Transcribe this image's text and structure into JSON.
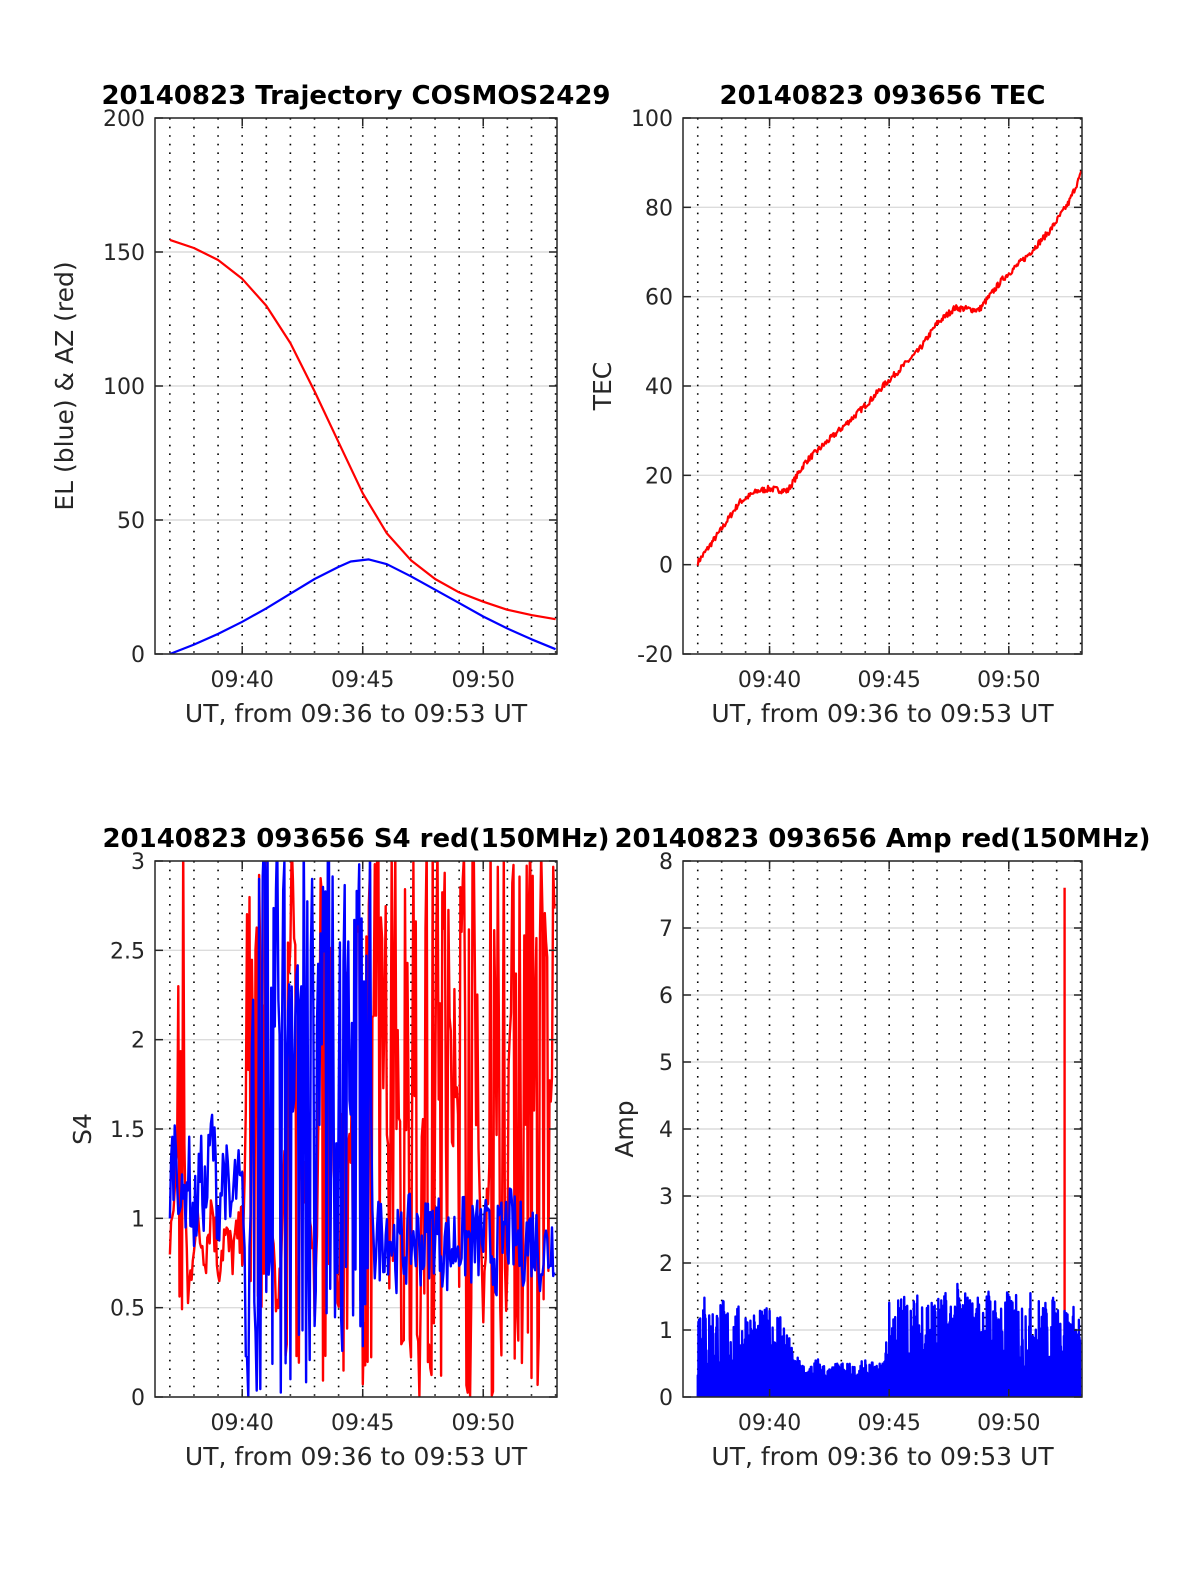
{
  "chart_data": [
    {
      "type": "line",
      "title": "20140823 Trajectory COSMOS2429",
      "xlabel": "UT, from 09:36 to 09:53 UT",
      "ylabel": "EL (blue) & AZ (red)",
      "xlim": [
        9.6064,
        9.8843
      ],
      "ylim": [
        0,
        200
      ],
      "xticks": [
        9.6667,
        9.75,
        9.8333
      ],
      "xticklabels": [
        "09:40",
        "09:45",
        "09:50"
      ],
      "yticks": [
        0,
        50,
        100,
        150,
        200
      ],
      "yticklabels": [
        "0",
        "50",
        "100",
        "150",
        "200"
      ],
      "grid": true,
      "series": [
        {
          "color": "#ff0000",
          "x": [
            9.6167,
            9.6333,
            9.65,
            9.6667,
            9.6833,
            9.7,
            9.7167,
            9.7333,
            9.75,
            9.7667,
            9.7833,
            9.8,
            9.8167,
            9.8333,
            9.85,
            9.8667,
            9.8833
          ],
          "y": [
            154.5,
            151.5,
            147,
            140,
            130,
            116,
            98,
            79,
            60,
            45,
            35,
            28,
            23,
            19.5,
            16.5,
            14.5,
            13
          ]
        },
        {
          "color": "#0000ff",
          "x": [
            9.6167,
            9.6333,
            9.65,
            9.6667,
            9.6833,
            9.7,
            9.7167,
            9.7333,
            9.7417,
            9.7542,
            9.7667,
            9.7833,
            9.8,
            9.8167,
            9.8333,
            9.85,
            9.8667,
            9.8833
          ],
          "y": [
            0,
            3.5,
            7.5,
            12,
            17,
            22.5,
            28,
            32.5,
            34.5,
            35.3,
            33.5,
            29,
            24,
            19,
            14,
            9.5,
            5.5,
            1.8
          ]
        }
      ]
    },
    {
      "type": "line",
      "title": "20140823 093656 TEC",
      "xlabel": "UT, from 09:36 to 09:53 UT",
      "ylabel": "TEC",
      "xlim": [
        9.6064,
        9.8843
      ],
      "ylim": [
        -20,
        100
      ],
      "xticks": [
        9.6667,
        9.75,
        9.8333
      ],
      "xticklabels": [
        "09:40",
        "09:45",
        "09:50"
      ],
      "yticks": [
        -20,
        0,
        20,
        40,
        60,
        80,
        100
      ],
      "yticklabels": [
        "-20",
        "0",
        "20",
        "40",
        "60",
        "80",
        "100"
      ],
      "grid": true,
      "series": [
        {
          "color": "#ff0000",
          "x": [
            9.6167,
            9.6333,
            9.6458,
            9.6583,
            9.6667,
            9.6792,
            9.6917,
            9.7083,
            9.725,
            9.7375,
            9.7458,
            9.7583,
            9.7708,
            9.7833,
            9.7958,
            9.8125,
            9.8292,
            9.8458,
            9.8625,
            9.875,
            9.8843
          ],
          "y": [
            0.5,
            8,
            14,
            16.5,
            17,
            16.5,
            23,
            28,
            33,
            37,
            40,
            44,
            48,
            54,
            57.5,
            57,
            64,
            69,
            75,
            81,
            88
          ]
        }
      ]
    },
    {
      "type": "line",
      "title": "20140823 093656 S4 red(150MHz)",
      "xlabel": "UT, from 09:36 to 09:53 UT",
      "ylabel": "S4",
      "xlim": [
        9.6064,
        9.8843
      ],
      "ylim": [
        0,
        3
      ],
      "xticks": [
        9.6667,
        9.75,
        9.8333
      ],
      "xticklabels": [
        "09:40",
        "09:45",
        "09:50"
      ],
      "yticks": [
        0,
        0.5,
        1,
        1.5,
        2,
        2.5,
        3
      ],
      "yticklabels": [
        "0",
        "0.5",
        "1",
        "1.5",
        "2",
        "2.5",
        "3"
      ],
      "grid": true,
      "series": [
        {
          "color": "#ff0000",
          "x": [
            9.6167,
            9.6208,
            9.625,
            9.6292,
            9.6333,
            9.6375,
            9.6417,
            9.6458,
            9.65,
            9.6542,
            9.6583,
            9.6625,
            9.6667,
            9.675,
            9.6833,
            9.6917,
            9.7,
            9.7083,
            9.7167,
            9.725,
            9.7333,
            9.7375,
            9.7417,
            9.7458,
            9.75,
            9.7583,
            9.7667,
            9.775,
            9.7833,
            9.7917,
            9.8,
            9.8083,
            9.8167,
            9.825,
            9.8333,
            9.8417,
            9.85,
            9.8583,
            9.8667,
            9.875,
            9.8833
          ],
          "y": [
            0.9,
            1.2,
            2.0,
            0.5,
            0.95,
            0.9,
            0.85,
            1.1,
            0.75,
            0.9,
            0.8,
            0.85,
            0.9,
            2.8,
            1.6,
            0.4,
            2.4,
            1.3,
            0.6,
            2.9,
            0.3,
            2.5,
            1.2,
            2.8,
            2.0,
            2.9,
            1.4,
            2.6,
            2.9,
            2.2,
            2.9,
            1.8,
            2.7,
            2.9,
            0.4,
            2.5,
            2.9,
            2.2,
            2.9,
            2.6,
            2.9
          ]
        },
        {
          "color": "#0000ff",
          "x": [
            9.6167,
            9.6208,
            9.625,
            9.6292,
            9.6333,
            9.6375,
            9.6417,
            9.6458,
            9.65,
            9.6542,
            9.6583,
            9.6625,
            9.6667,
            9.6708,
            9.675,
            9.6833,
            9.6917,
            9.7,
            9.7083,
            9.7167,
            9.725,
            9.7333,
            9.7375,
            9.7417,
            9.75,
            9.7583,
            9.7667,
            9.775,
            9.7833,
            9.7917,
            9.8,
            9.8083,
            9.8167,
            9.825,
            9.8333,
            9.8417,
            9.85,
            9.8583,
            9.8667,
            9.875,
            9.8833
          ],
          "y": [
            1.2,
            1.45,
            1.0,
            1.3,
            0.95,
            1.25,
            1.1,
            1.5,
            1.05,
            1.3,
            1.0,
            1.2,
            1.1,
            0.0,
            2.9,
            2.0,
            2.9,
            1.9,
            2.8,
            2.9,
            2.6,
            2.9,
            2.8,
            2.9,
            2.7,
            0.85,
            0.95,
            0.8,
            0.9,
            0.85,
            0.95,
            0.8,
            0.9,
            0.85,
            0.9,
            0.8,
            0.95,
            0.85,
            0.9,
            0.8,
            0.9
          ]
        }
      ]
    },
    {
      "type": "line",
      "title": "20140823 093656 Amp red(150MHz)",
      "xlabel": "UT, from 09:36 to 09:53 UT",
      "ylabel": "Amp",
      "xlim": [
        9.6064,
        9.8843
      ],
      "ylim": [
        0,
        8
      ],
      "xticks": [
        9.6667,
        9.75,
        9.8333
      ],
      "xticklabels": [
        "09:40",
        "09:45",
        "09:50"
      ],
      "yticks": [
        0,
        1,
        2,
        3,
        4,
        5,
        6,
        7,
        8
      ],
      "yticklabels": [
        "0",
        "1",
        "2",
        "3",
        "4",
        "5",
        "6",
        "7",
        "8"
      ],
      "grid": true,
      "series": [
        {
          "color": "#ff0000",
          "x": [
            9.8722,
            9.8722
          ],
          "y": [
            0,
            7.6
          ]
        },
        {
          "color": "#0000ff",
          "envelope": true,
          "x": [
            9.6167,
            9.625,
            9.6333,
            9.6417,
            9.65,
            9.6583,
            9.6667,
            9.675,
            9.6833,
            9.6917,
            9.7,
            9.7083,
            9.7167,
            9.725,
            9.7333,
            9.7417,
            9.7458,
            9.75,
            9.7583,
            9.7667,
            9.775,
            9.7833,
            9.7917,
            9.8,
            9.8083,
            9.8167,
            9.825,
            9.8333,
            9.8417,
            9.85,
            9.8583,
            9.8667,
            9.875,
            9.8833
          ],
          "y": [
            1.8,
            1.4,
            1.5,
            1.35,
            1.4,
            1.3,
            1.35,
            1.4,
            0.65,
            0.5,
            0.6,
            0.45,
            0.55,
            0.5,
            0.55,
            0.5,
            0.55,
            1.45,
            1.6,
            1.5,
            1.7,
            1.55,
            1.6,
            1.75,
            1.5,
            1.7,
            1.55,
            1.6,
            1.5,
            1.6,
            1.45,
            1.55,
            1.4,
            1.35
          ]
        }
      ]
    }
  ]
}
